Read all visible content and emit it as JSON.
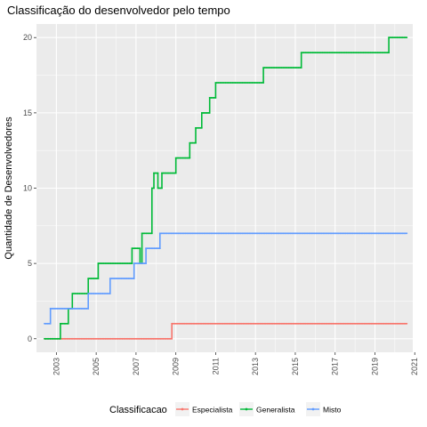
{
  "chart_data": {
    "type": "line",
    "title": "Classificação do desenvolvedor pelo tempo",
    "xlabel": "",
    "ylabel": "Quantidade de Desenvolvedores",
    "xlim": [
      2002.0,
      2020.9
    ],
    "ylim": [
      -0.9,
      20.9
    ],
    "x_ticks": [
      "2003",
      "2005",
      "2007",
      "2009",
      "2011",
      "2013",
      "2015",
      "2017",
      "2019",
      "2021"
    ],
    "y_ticks": [
      "0",
      "5",
      "10",
      "15",
      "20"
    ],
    "grid": true,
    "legend": {
      "title": "Classificacao",
      "position": "bottom"
    },
    "series": [
      {
        "name": "Especialista",
        "color": "#F8766D",
        "points": [
          [
            2002.4,
            0
          ],
          [
            2008.8,
            0
          ],
          [
            2008.8,
            1
          ],
          [
            2020.6,
            1
          ]
        ]
      },
      {
        "name": "Generalista",
        "color": "#00BA38",
        "points": [
          [
            2002.4,
            0
          ],
          [
            2003.2,
            0
          ],
          [
            2003.2,
            1
          ],
          [
            2003.6,
            1
          ],
          [
            2003.6,
            2
          ],
          [
            2003.8,
            2
          ],
          [
            2003.8,
            3
          ],
          [
            2004.6,
            3
          ],
          [
            2004.6,
            4
          ],
          [
            2005.1,
            4
          ],
          [
            2005.1,
            5
          ],
          [
            2006.8,
            5
          ],
          [
            2006.8,
            6
          ],
          [
            2007.2,
            6
          ],
          [
            2007.2,
            5
          ],
          [
            2007.3,
            5
          ],
          [
            2007.3,
            7
          ],
          [
            2007.8,
            7
          ],
          [
            2007.8,
            10
          ],
          [
            2007.9,
            10
          ],
          [
            2007.9,
            11
          ],
          [
            2008.1,
            11
          ],
          [
            2008.1,
            10
          ],
          [
            2008.3,
            10
          ],
          [
            2008.3,
            11
          ],
          [
            2009.0,
            11
          ],
          [
            2009.0,
            12
          ],
          [
            2009.7,
            12
          ],
          [
            2009.7,
            13
          ],
          [
            2010.0,
            13
          ],
          [
            2010.0,
            14
          ],
          [
            2010.3,
            14
          ],
          [
            2010.3,
            15
          ],
          [
            2010.7,
            15
          ],
          [
            2010.7,
            16
          ],
          [
            2011.0,
            16
          ],
          [
            2011.0,
            17
          ],
          [
            2013.4,
            17
          ],
          [
            2013.4,
            18
          ],
          [
            2015.3,
            18
          ],
          [
            2015.3,
            19
          ],
          [
            2019.7,
            19
          ],
          [
            2019.7,
            20
          ],
          [
            2020.6,
            20
          ]
        ]
      },
      {
        "name": "Misto",
        "color": "#619CFF",
        "points": [
          [
            2002.4,
            1
          ],
          [
            2002.7,
            1
          ],
          [
            2002.7,
            2
          ],
          [
            2004.6,
            2
          ],
          [
            2004.6,
            3
          ],
          [
            2005.7,
            3
          ],
          [
            2005.7,
            4
          ],
          [
            2006.9,
            4
          ],
          [
            2006.9,
            5
          ],
          [
            2007.5,
            5
          ],
          [
            2007.5,
            6
          ],
          [
            2008.2,
            6
          ],
          [
            2008.2,
            7
          ],
          [
            2020.6,
            7
          ]
        ]
      }
    ]
  }
}
